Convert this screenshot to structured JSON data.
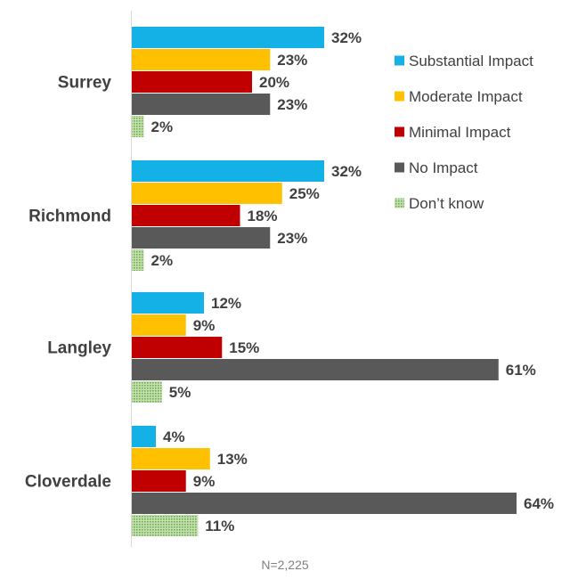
{
  "chart_data": {
    "type": "bar",
    "orientation": "horizontal",
    "categories": [
      "Surrey",
      "Richmond",
      "Langley",
      "Cloverdale"
    ],
    "series": [
      {
        "name": "Substantial Impact",
        "color": "#14b1e7",
        "values": [
          32,
          32,
          12,
          4
        ],
        "labels": [
          "32%",
          "32%",
          "12%",
          "4%"
        ]
      },
      {
        "name": "Moderate Impact",
        "color": "#ffc000",
        "values": [
          23,
          25,
          9,
          13
        ],
        "labels": [
          "23%",
          "25%",
          "9%",
          "13%"
        ]
      },
      {
        "name": "Minimal Impact",
        "color": "#c00000",
        "values": [
          20,
          18,
          15,
          9
        ],
        "labels": [
          "20%",
          "18%",
          "15%",
          "9%"
        ]
      },
      {
        "name": "No Impact",
        "color": "#595959",
        "values": [
          23,
          23,
          61,
          64
        ],
        "labels": [
          "23%",
          "23%",
          "61%",
          "64%"
        ]
      },
      {
        "name": "Don’t know",
        "color": "#70ad47",
        "pattern": "dotted",
        "values": [
          2,
          2,
          5,
          11
        ],
        "labels": [
          "2%",
          "2%",
          "5%",
          "11%"
        ]
      }
    ],
    "xlim": [
      0,
      70
    ],
    "grid": false,
    "legend_position": "top-right",
    "note": "N=2,225"
  }
}
